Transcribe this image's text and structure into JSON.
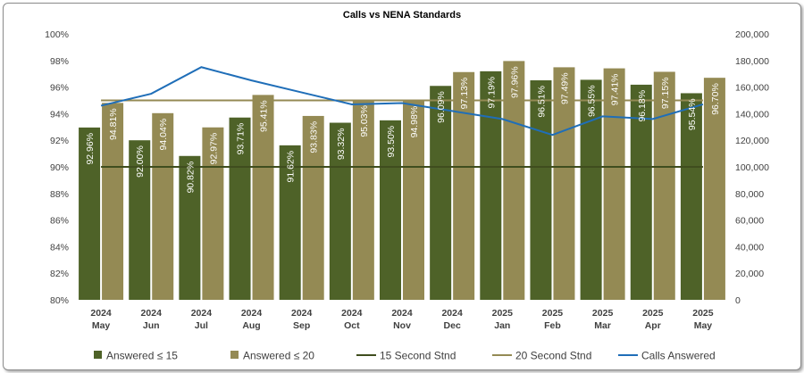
{
  "chart_data": {
    "type": "bar",
    "title": "Calls vs NENA Standards",
    "categories": [
      [
        "2024",
        "May"
      ],
      [
        "2024",
        "Jun"
      ],
      [
        "2024",
        "Jul"
      ],
      [
        "2024",
        "Aug"
      ],
      [
        "2024",
        "Sep"
      ],
      [
        "2024",
        "Oct"
      ],
      [
        "2024",
        "Nov"
      ],
      [
        "2024",
        "Dec"
      ],
      [
        "2025",
        "Jan"
      ],
      [
        "2025",
        "Feb"
      ],
      [
        "2025",
        "Mar"
      ],
      [
        "2025",
        "Apr"
      ],
      [
        "2025",
        "May"
      ]
    ],
    "y_left": {
      "min": 80,
      "max": 100,
      "step": 2,
      "tick_labels": [
        "80%",
        "82%",
        "84%",
        "86%",
        "88%",
        "90%",
        "92%",
        "94%",
        "96%",
        "98%",
        "100%"
      ]
    },
    "y_right": {
      "min": 0,
      "max": 200000,
      "step": 20000,
      "tick_labels": [
        "0",
        "20,000",
        "40,000",
        "60,000",
        "80,000",
        "100,000",
        "120,000",
        "140,000",
        "160,000",
        "180,000",
        "200,000"
      ]
    },
    "series": [
      {
        "name": "Answered ≤ 15",
        "type": "bar",
        "axis": "left",
        "color": "#4e6228",
        "values": [
          92.96,
          92.0,
          90.82,
          93.71,
          91.62,
          93.32,
          93.5,
          96.09,
          97.19,
          96.51,
          96.55,
          96.18,
          95.54
        ],
        "labels": [
          "92.96%",
          "92.00%",
          "90.82%",
          "93.71%",
          "91.62%",
          "93.32%",
          "93.50%",
          "96.09%",
          "97.19%",
          "96.51%",
          "96.55%",
          "96.18%",
          "95.54%"
        ]
      },
      {
        "name": "Answered ≤ 20",
        "type": "bar",
        "axis": "left",
        "color": "#948a54",
        "values": [
          94.81,
          94.04,
          92.97,
          95.41,
          93.83,
          95.03,
          94.98,
          97.13,
          97.96,
          97.49,
          97.41,
          97.15,
          96.7
        ],
        "labels": [
          "94.81%",
          "94.04%",
          "92.97%",
          "95.41%",
          "93.83%",
          "95.03%",
          "94.98%",
          "97.13%",
          "97.96%",
          "97.49%",
          "97.41%",
          "97.15%",
          "96.70%"
        ]
      },
      {
        "name": "15 Second Stnd",
        "type": "line",
        "axis": "left",
        "color": "#3f4d1e",
        "values": [
          90,
          90,
          90,
          90,
          90,
          90,
          90,
          90,
          90,
          90,
          90,
          90,
          90
        ]
      },
      {
        "name": "20 Second Stnd",
        "type": "line",
        "axis": "left",
        "color": "#948a54",
        "values": [
          95,
          95,
          95,
          95,
          95,
          95,
          95,
          95,
          95,
          95,
          95,
          95,
          95
        ]
      },
      {
        "name": "Calls Answered",
        "type": "line",
        "axis": "right",
        "color": "#1f6eb8",
        "values": [
          146000,
          155000,
          175000,
          165000,
          156000,
          147000,
          148000,
          142000,
          136000,
          124000,
          138000,
          136000,
          147000
        ]
      }
    ],
    "legend": "bottom",
    "grid": false
  }
}
